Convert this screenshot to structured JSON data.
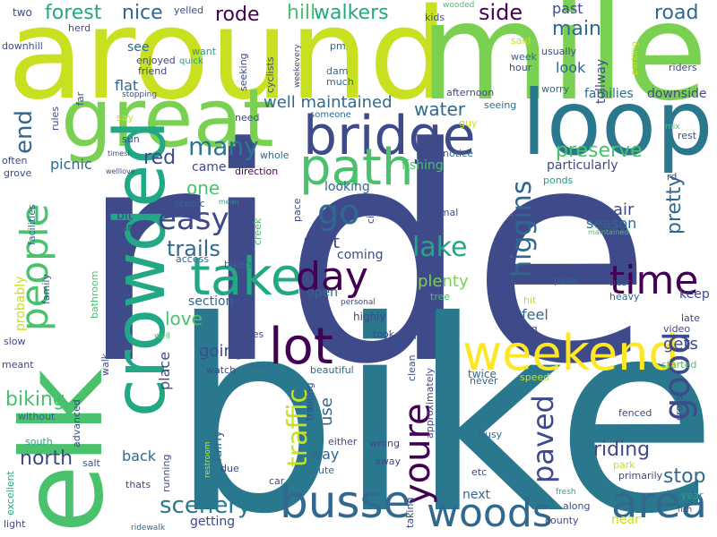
{
  "words": [
    "ride",
    "bike",
    "around",
    "mile",
    "elk",
    "loop",
    "great",
    "crowded",
    "bridge",
    "path",
    "take",
    "lot",
    "busse",
    "weekend",
    "woods",
    "area",
    "people",
    "day",
    "time",
    "easy",
    "good",
    "youre",
    "go",
    "lake",
    "paved",
    "higgins",
    "trails",
    "smooth",
    "forest",
    "many",
    "traffic",
    "scenery",
    "hill",
    "walkers",
    "end",
    "rode",
    "nice",
    "north",
    "side",
    "main",
    "road",
    "stop",
    "preserve",
    "red",
    "water",
    "pretty",
    "riding",
    "biking",
    "one",
    "part",
    "love",
    "well maintained",
    "going",
    "picnic",
    "flat",
    "plenty",
    "air",
    "season",
    "gets",
    "fishing",
    "past",
    "look",
    "tollway",
    "particularly",
    "families",
    "downside",
    "next",
    "back",
    "way",
    "use",
    "open",
    "came",
    "coming",
    "section",
    "place",
    "bit",
    "turn",
    "feel",
    "looking",
    "keep",
    "two",
    "yelled",
    "downhill",
    "herd",
    "see",
    "enjoyed",
    "friend",
    "want",
    "quick",
    "seeking",
    "cyclists",
    "pm",
    "dam",
    "much",
    "someone",
    "weekevery",
    "kids",
    "wooded",
    "said",
    "week",
    "hour",
    "usually",
    "parking",
    "riders",
    "worry",
    "afternoon",
    "seeing",
    "guy",
    "mix",
    "rest",
    "need",
    "stopping",
    "say",
    "rules",
    "far",
    "sun",
    "timesi",
    "welllove",
    "often",
    "grove",
    "whole",
    "direction",
    "notice",
    "ponds",
    "rd",
    "mean",
    "scenic",
    "creek",
    "pace",
    "circle",
    "animal",
    "maintained",
    "facilities",
    "access",
    "bikers",
    "tree",
    "personal",
    "probably",
    "family",
    "bathroom",
    "pokes",
    "highly",
    "took",
    "per",
    "peak",
    "best",
    "heavy",
    "hit",
    "long",
    "late",
    "video",
    "slow",
    "well",
    "meant",
    "watch",
    "east",
    "beautiful",
    "walk",
    "advanced",
    "training",
    "clean",
    "approximately",
    "twice",
    "never",
    "speed",
    "started",
    "cross",
    "without",
    "fairly",
    "restroom",
    "wrong",
    "either",
    "busy",
    "fenced",
    "south",
    "salt",
    "running",
    "due",
    "route",
    "away",
    "excellent",
    "car",
    "thats",
    "etc",
    "park",
    "primarily",
    "light",
    "getting",
    "taking",
    "along",
    "county",
    "fresh",
    "near",
    "year",
    "fish",
    "ridewalk",
    "much"
  ],
  "colors": {
    "yellow_green": "#c8e020",
    "light_green": "#7ad151",
    "green": "#4ac16d",
    "teal_green": "#22a884",
    "teal": "#1f9e89",
    "blue_teal": "#2a788e",
    "blue": "#31688e",
    "indigo": "#3e4a89",
    "purple": "#472d7b",
    "dark_purple": "#440154",
    "bright_yellow": "#fde725"
  }
}
